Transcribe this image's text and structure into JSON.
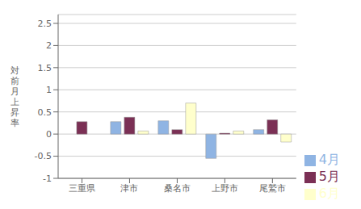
{
  "chart_data": {
    "type": "bar",
    "categories": [
      "三重県",
      "津市",
      "桑名市",
      "上野市",
      "尾鷲市"
    ],
    "series": [
      {
        "name": "4月",
        "color": "#8FB4E3",
        "values": [
          0.0,
          0.28,
          0.3,
          -0.55,
          0.1
        ]
      },
      {
        "name": "5月",
        "color": "#7B3055",
        "values": [
          0.28,
          0.38,
          0.1,
          0.02,
          0.32
        ]
      },
      {
        "name": "6月",
        "color": "#FFFFCC",
        "values": [
          0.0,
          0.07,
          0.7,
          0.07,
          -0.18
        ]
      }
    ],
    "ylabel": "対\n前\n月\n上\n昇\n率",
    "ylim": [
      -1.0,
      2.7
    ],
    "yticks": [
      -1,
      -0.5,
      0,
      0.5,
      1,
      1.5,
      2,
      2.5
    ],
    "grid": true,
    "legend": "right"
  }
}
